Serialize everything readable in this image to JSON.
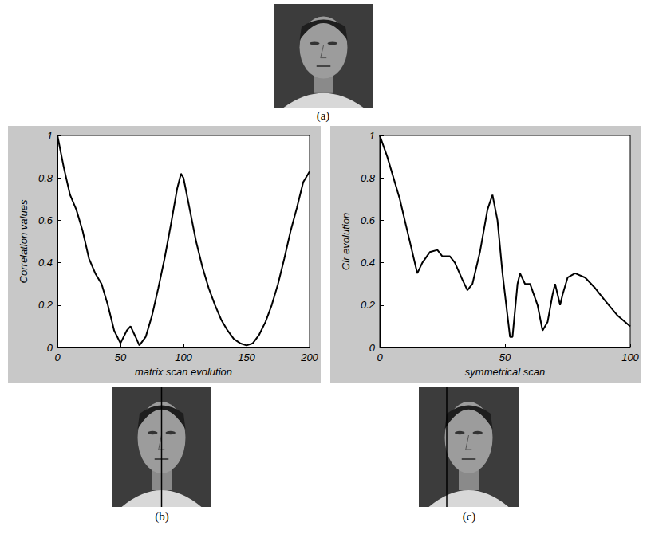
{
  "top_panel": {
    "panel": "(a)"
  },
  "chart_data": [
    {
      "type": "line",
      "panel": "(b)",
      "x_label": "matrix scan evolution",
      "y_label": "Correlation values",
      "x": [
        0,
        5,
        10,
        15,
        20,
        25,
        30,
        35,
        40,
        45,
        50,
        55,
        58,
        62,
        65,
        70,
        75,
        80,
        85,
        90,
        95,
        98,
        100,
        105,
        110,
        115,
        120,
        125,
        130,
        135,
        140,
        145,
        150,
        155,
        160,
        165,
        170,
        175,
        180,
        185,
        190,
        195,
        200
      ],
      "values": [
        1,
        0.85,
        0.72,
        0.65,
        0.55,
        0.42,
        0.35,
        0.3,
        0.2,
        0.08,
        0.02,
        0.08,
        0.1,
        0.05,
        0.01,
        0.05,
        0.15,
        0.28,
        0.42,
        0.58,
        0.75,
        0.82,
        0.8,
        0.65,
        0.5,
        0.38,
        0.28,
        0.2,
        0.13,
        0.08,
        0.04,
        0.02,
        0.01,
        0.02,
        0.06,
        0.12,
        0.2,
        0.3,
        0.42,
        0.55,
        0.66,
        0.78,
        0.83
      ],
      "color": "#000000",
      "xlim": [
        0,
        200
      ],
      "ylim": [
        0,
        1
      ],
      "xticks": [
        0,
        50,
        100,
        150,
        200
      ],
      "yticks": [
        0,
        0.2,
        0.4,
        0.6,
        0.8,
        1
      ],
      "grid": false
    },
    {
      "type": "line",
      "panel": "(c)",
      "x_label": "symmetrical scan",
      "y_label": "Clr evolution",
      "x": [
        0,
        3,
        5,
        8,
        10,
        13,
        15,
        17,
        20,
        23,
        25,
        28,
        30,
        33,
        35,
        37,
        40,
        43,
        45,
        47,
        49,
        51,
        52,
        53,
        55,
        56,
        58,
        60,
        63,
        65,
        67,
        69,
        70,
        72,
        73,
        75,
        78,
        82,
        86,
        90,
        95,
        100
      ],
      "values": [
        1,
        0.9,
        0.82,
        0.7,
        0.6,
        0.45,
        0.35,
        0.4,
        0.45,
        0.46,
        0.43,
        0.43,
        0.4,
        0.32,
        0.27,
        0.3,
        0.45,
        0.65,
        0.72,
        0.6,
        0.35,
        0.15,
        0.05,
        0.05,
        0.3,
        0.35,
        0.3,
        0.3,
        0.2,
        0.08,
        0.12,
        0.25,
        0.3,
        0.2,
        0.25,
        0.33,
        0.35,
        0.33,
        0.28,
        0.22,
        0.15,
        0.1
      ],
      "color": "#000000",
      "xlim": [
        0,
        100
      ],
      "ylim": [
        0,
        1
      ],
      "xticks": [
        0,
        50,
        100
      ],
      "yticks": [
        0,
        0.2,
        0.4,
        0.6,
        0.8,
        1
      ],
      "grid": false
    }
  ]
}
